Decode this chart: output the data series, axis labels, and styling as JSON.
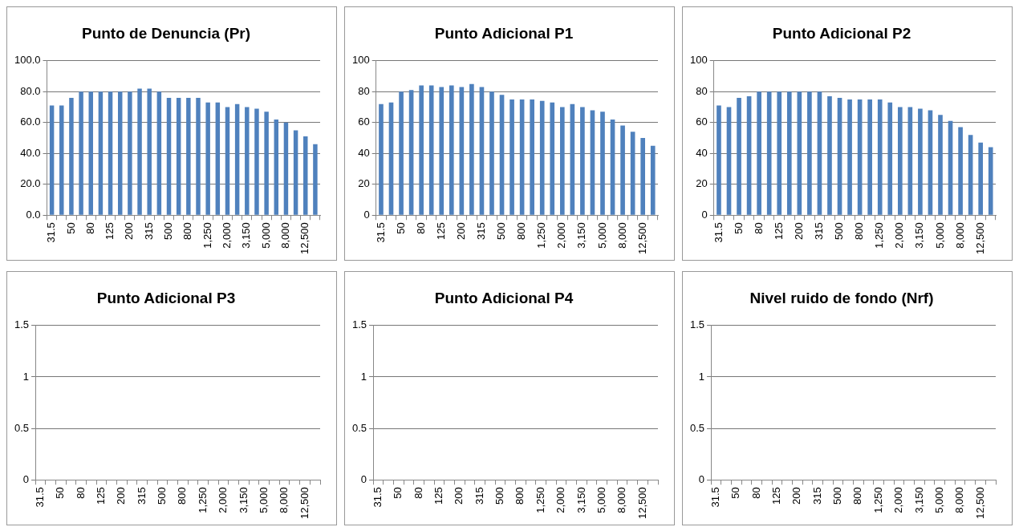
{
  "chart_data": [
    {
      "type": "bar",
      "title": "Punto de Denuncia (Pr)",
      "categories": [
        "31.5",
        null,
        "50",
        null,
        "80",
        null,
        "125",
        null,
        "200",
        null,
        "315",
        null,
        "500",
        null,
        "800",
        null,
        "1,250",
        null,
        "2,000",
        null,
        "3,150",
        null,
        "5,000",
        null,
        "8,000",
        null,
        "12,500",
        null
      ],
      "color": "#4f81bd",
      "values": [
        71,
        71,
        76,
        80,
        80,
        80,
        80,
        80,
        80,
        82,
        82,
        80,
        76,
        76,
        76,
        76,
        73,
        73,
        70,
        72,
        70,
        69,
        67,
        62,
        60,
        55,
        51,
        46
      ],
      "ylim": [
        0,
        100
      ],
      "yticks": [
        {
          "value": 0,
          "label": "0.0"
        },
        {
          "value": 20,
          "label": "20.0"
        },
        {
          "value": 40,
          "label": "40.0"
        },
        {
          "value": 60,
          "label": "60.0"
        },
        {
          "value": 80,
          "label": "80.0"
        },
        {
          "value": 100,
          "label": "100.0"
        }
      ],
      "grid": "y"
    },
    {
      "type": "bar",
      "title": "Punto Adicional P1",
      "categories": [
        "31.5",
        null,
        "50",
        null,
        "80",
        null,
        "125",
        null,
        "200",
        null,
        "315",
        null,
        "500",
        null,
        "800",
        null,
        "1,250",
        null,
        "2,000",
        null,
        "3,150",
        null,
        "5,000",
        null,
        "8,000",
        null,
        "12,500",
        null
      ],
      "color": "#4f81bd",
      "values": [
        72,
        73,
        80,
        81,
        84,
        84,
        83,
        84,
        83,
        85,
        83,
        80,
        78,
        75,
        75,
        75,
        74,
        73,
        70,
        72,
        70,
        68,
        67,
        62,
        58,
        54,
        50,
        45
      ],
      "ylim": [
        0,
        100
      ],
      "yticks": [
        0,
        20,
        40,
        60,
        80,
        100
      ],
      "grid": "y"
    },
    {
      "type": "bar",
      "title": "Punto Adicional P2",
      "categories": [
        "31.5",
        null,
        "50",
        null,
        "80",
        null,
        "125",
        null,
        "200",
        null,
        "315",
        null,
        "500",
        null,
        "800",
        null,
        "1,250",
        null,
        "2,000",
        null,
        "3,150",
        null,
        "5,000",
        null,
        "8,000",
        null,
        "12,500",
        null
      ],
      "color": "#4f81bd",
      "values": [
        71,
        70,
        76,
        77,
        80,
        80,
        80,
        80,
        80,
        80,
        80,
        77,
        76,
        75,
        75,
        75,
        75,
        73,
        70,
        70,
        69,
        68,
        65,
        61,
        57,
        52,
        47,
        44
      ],
      "ylim": [
        0,
        100
      ],
      "yticks": [
        0,
        20,
        40,
        60,
        80,
        100
      ],
      "grid": "y"
    },
    {
      "type": "bar",
      "title": "Punto Adicional P3",
      "categories": [
        "31.5",
        null,
        "50",
        null,
        "80",
        null,
        "125",
        null,
        "200",
        null,
        "315",
        null,
        "500",
        null,
        "800",
        null,
        "1,250",
        null,
        "2,000",
        null,
        "3,150",
        null,
        "5,000",
        null,
        "8,000",
        null,
        "12,500",
        null
      ],
      "color": "#4f81bd",
      "values": [
        null,
        null,
        null,
        null,
        null,
        null,
        null,
        null,
        null,
        null,
        null,
        null,
        null,
        null,
        null,
        null,
        null,
        null,
        null,
        null,
        null,
        null,
        null,
        null,
        null,
        null,
        null,
        null
      ],
      "ylim": [
        0,
        1.5
      ],
      "yticks": [
        0,
        0.5,
        1,
        1.5
      ],
      "grid": "y"
    },
    {
      "type": "bar",
      "title": "Punto Adicional P4",
      "categories": [
        "31.5",
        null,
        "50",
        null,
        "80",
        null,
        "125",
        null,
        "200",
        null,
        "315",
        null,
        "500",
        null,
        "800",
        null,
        "1,250",
        null,
        "2,000",
        null,
        "3,150",
        null,
        "5,000",
        null,
        "8,000",
        null,
        "12,500",
        null
      ],
      "color": "#4f81bd",
      "values": [
        null,
        null,
        null,
        null,
        null,
        null,
        null,
        null,
        null,
        null,
        null,
        null,
        null,
        null,
        null,
        null,
        null,
        null,
        null,
        null,
        null,
        null,
        null,
        null,
        null,
        null,
        null,
        null
      ],
      "ylim": [
        0,
        1.5
      ],
      "yticks": [
        0,
        0.5,
        1,
        1.5
      ],
      "grid": "y"
    },
    {
      "type": "bar",
      "title": "Nivel ruido de fondo (Nrf)",
      "categories": [
        "31.5",
        null,
        "50",
        null,
        "80",
        null,
        "125",
        null,
        "200",
        null,
        "315",
        null,
        "500",
        null,
        "800",
        null,
        "1,250",
        null,
        "2,000",
        null,
        "3,150",
        null,
        "5,000",
        null,
        "8,000",
        null,
        "12,500",
        null
      ],
      "color": "#4f81bd",
      "values": [
        null,
        null,
        null,
        null,
        null,
        null,
        null,
        null,
        null,
        null,
        null,
        null,
        null,
        null,
        null,
        null,
        null,
        null,
        null,
        null,
        null,
        null,
        null,
        null,
        null,
        null,
        null,
        null
      ],
      "ylim": [
        0,
        1.5
      ],
      "yticks": [
        0,
        0.5,
        1,
        1.5
      ],
      "grid": "y"
    }
  ]
}
